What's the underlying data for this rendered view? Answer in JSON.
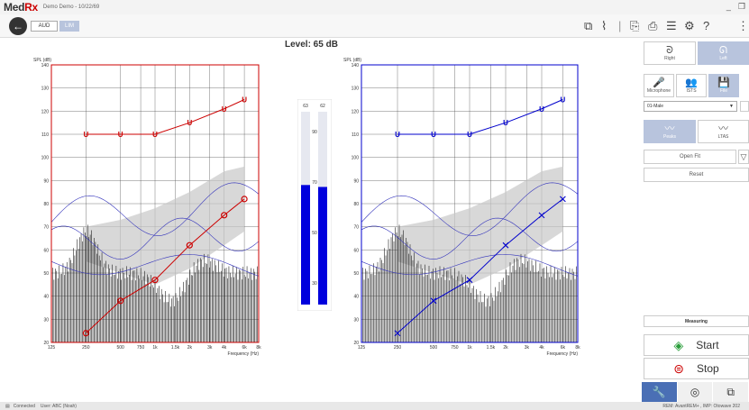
{
  "app": {
    "logo_main": "Med",
    "logo_rx": "Rx",
    "title": "Demo Demo - 10/22/69"
  },
  "toolbar": {
    "back_icon": "arrow-left-icon",
    "aud_label": "AUD",
    "lim_label": "LIM"
  },
  "level_label": "Level: 65 dB",
  "chart_data": [
    {
      "type": "line",
      "ear": "right",
      "color": "#cc0000",
      "ylabel": "SPL (dB)",
      "xlabel": "Frequency (Hz)",
      "ylim": [
        20,
        140
      ],
      "yticks": [
        20,
        30,
        40,
        50,
        60,
        70,
        80,
        90,
        100,
        110,
        120,
        130,
        140
      ],
      "xtick_labels": [
        "125",
        "250",
        "500",
        "750",
        "1k",
        "1.5k",
        "2k",
        "3k",
        "4k",
        "6k",
        "8k"
      ],
      "xtick_freqs": [
        125,
        250,
        500,
        750,
        1000,
        1500,
        2000,
        3000,
        4000,
        6000,
        8000
      ],
      "series": [
        {
          "x": [
            250,
            500,
            1000,
            2000,
            4000,
            6000
          ],
          "y": [
            110,
            110,
            110,
            115,
            121,
            125
          ]
        },
        {
          "x": [
            250,
            500,
            1000,
            2000,
            4000,
            6000
          ],
          "y": [
            24,
            38,
            47,
            62,
            75,
            82
          ]
        }
      ]
    },
    {
      "type": "line",
      "ear": "left",
      "color": "#0000cc",
      "ylabel": "SPL (dB)",
      "xlabel": "Frequency (Hz)",
      "ylim": [
        20,
        140
      ],
      "yticks": [
        20,
        30,
        40,
        50,
        60,
        70,
        80,
        90,
        100,
        110,
        120,
        130,
        140
      ],
      "xtick_labels": [
        "125",
        "250",
        "500",
        "750",
        "1k",
        "1.5k",
        "2k",
        "3k",
        "4k",
        "6k",
        "8k"
      ],
      "xtick_freqs": [
        125,
        250,
        500,
        750,
        1000,
        1500,
        2000,
        3000,
        4000,
        6000,
        8000
      ],
      "series": [
        {
          "x": [
            250,
            500,
            1000,
            2000,
            4000,
            6000
          ],
          "y": [
            110,
            110,
            110,
            115,
            121,
            125
          ]
        },
        {
          "x": [
            250,
            500,
            1000,
            2000,
            4000,
            6000
          ],
          "y": [
            24,
            38,
            47,
            62,
            75,
            82
          ]
        }
      ]
    }
  ],
  "meter": {
    "labels": [
      "90",
      "70",
      "50",
      "30"
    ],
    "left_value": "63",
    "right_value": "62",
    "left_level": 0.62,
    "right_level": 0.61
  },
  "right_panel": {
    "right_label": "Right",
    "left_label": "Left",
    "microphone_label": "Microphone",
    "ists_label": "ISTS",
    "file_label": "File",
    "select_value": "01-Male",
    "peaks_label": "Peaks",
    "ltas_label": "LTAS",
    "open_fit_label": "Open Fit",
    "reset_label": "Reset",
    "measuring_label": "Measuring",
    "start_label": "Start",
    "stop_label": "Stop"
  },
  "status": {
    "connected": "Connected",
    "user": "User: ABC (Noah)",
    "rem": "REM: AvantREM+ , IMP: Otowave 202"
  }
}
